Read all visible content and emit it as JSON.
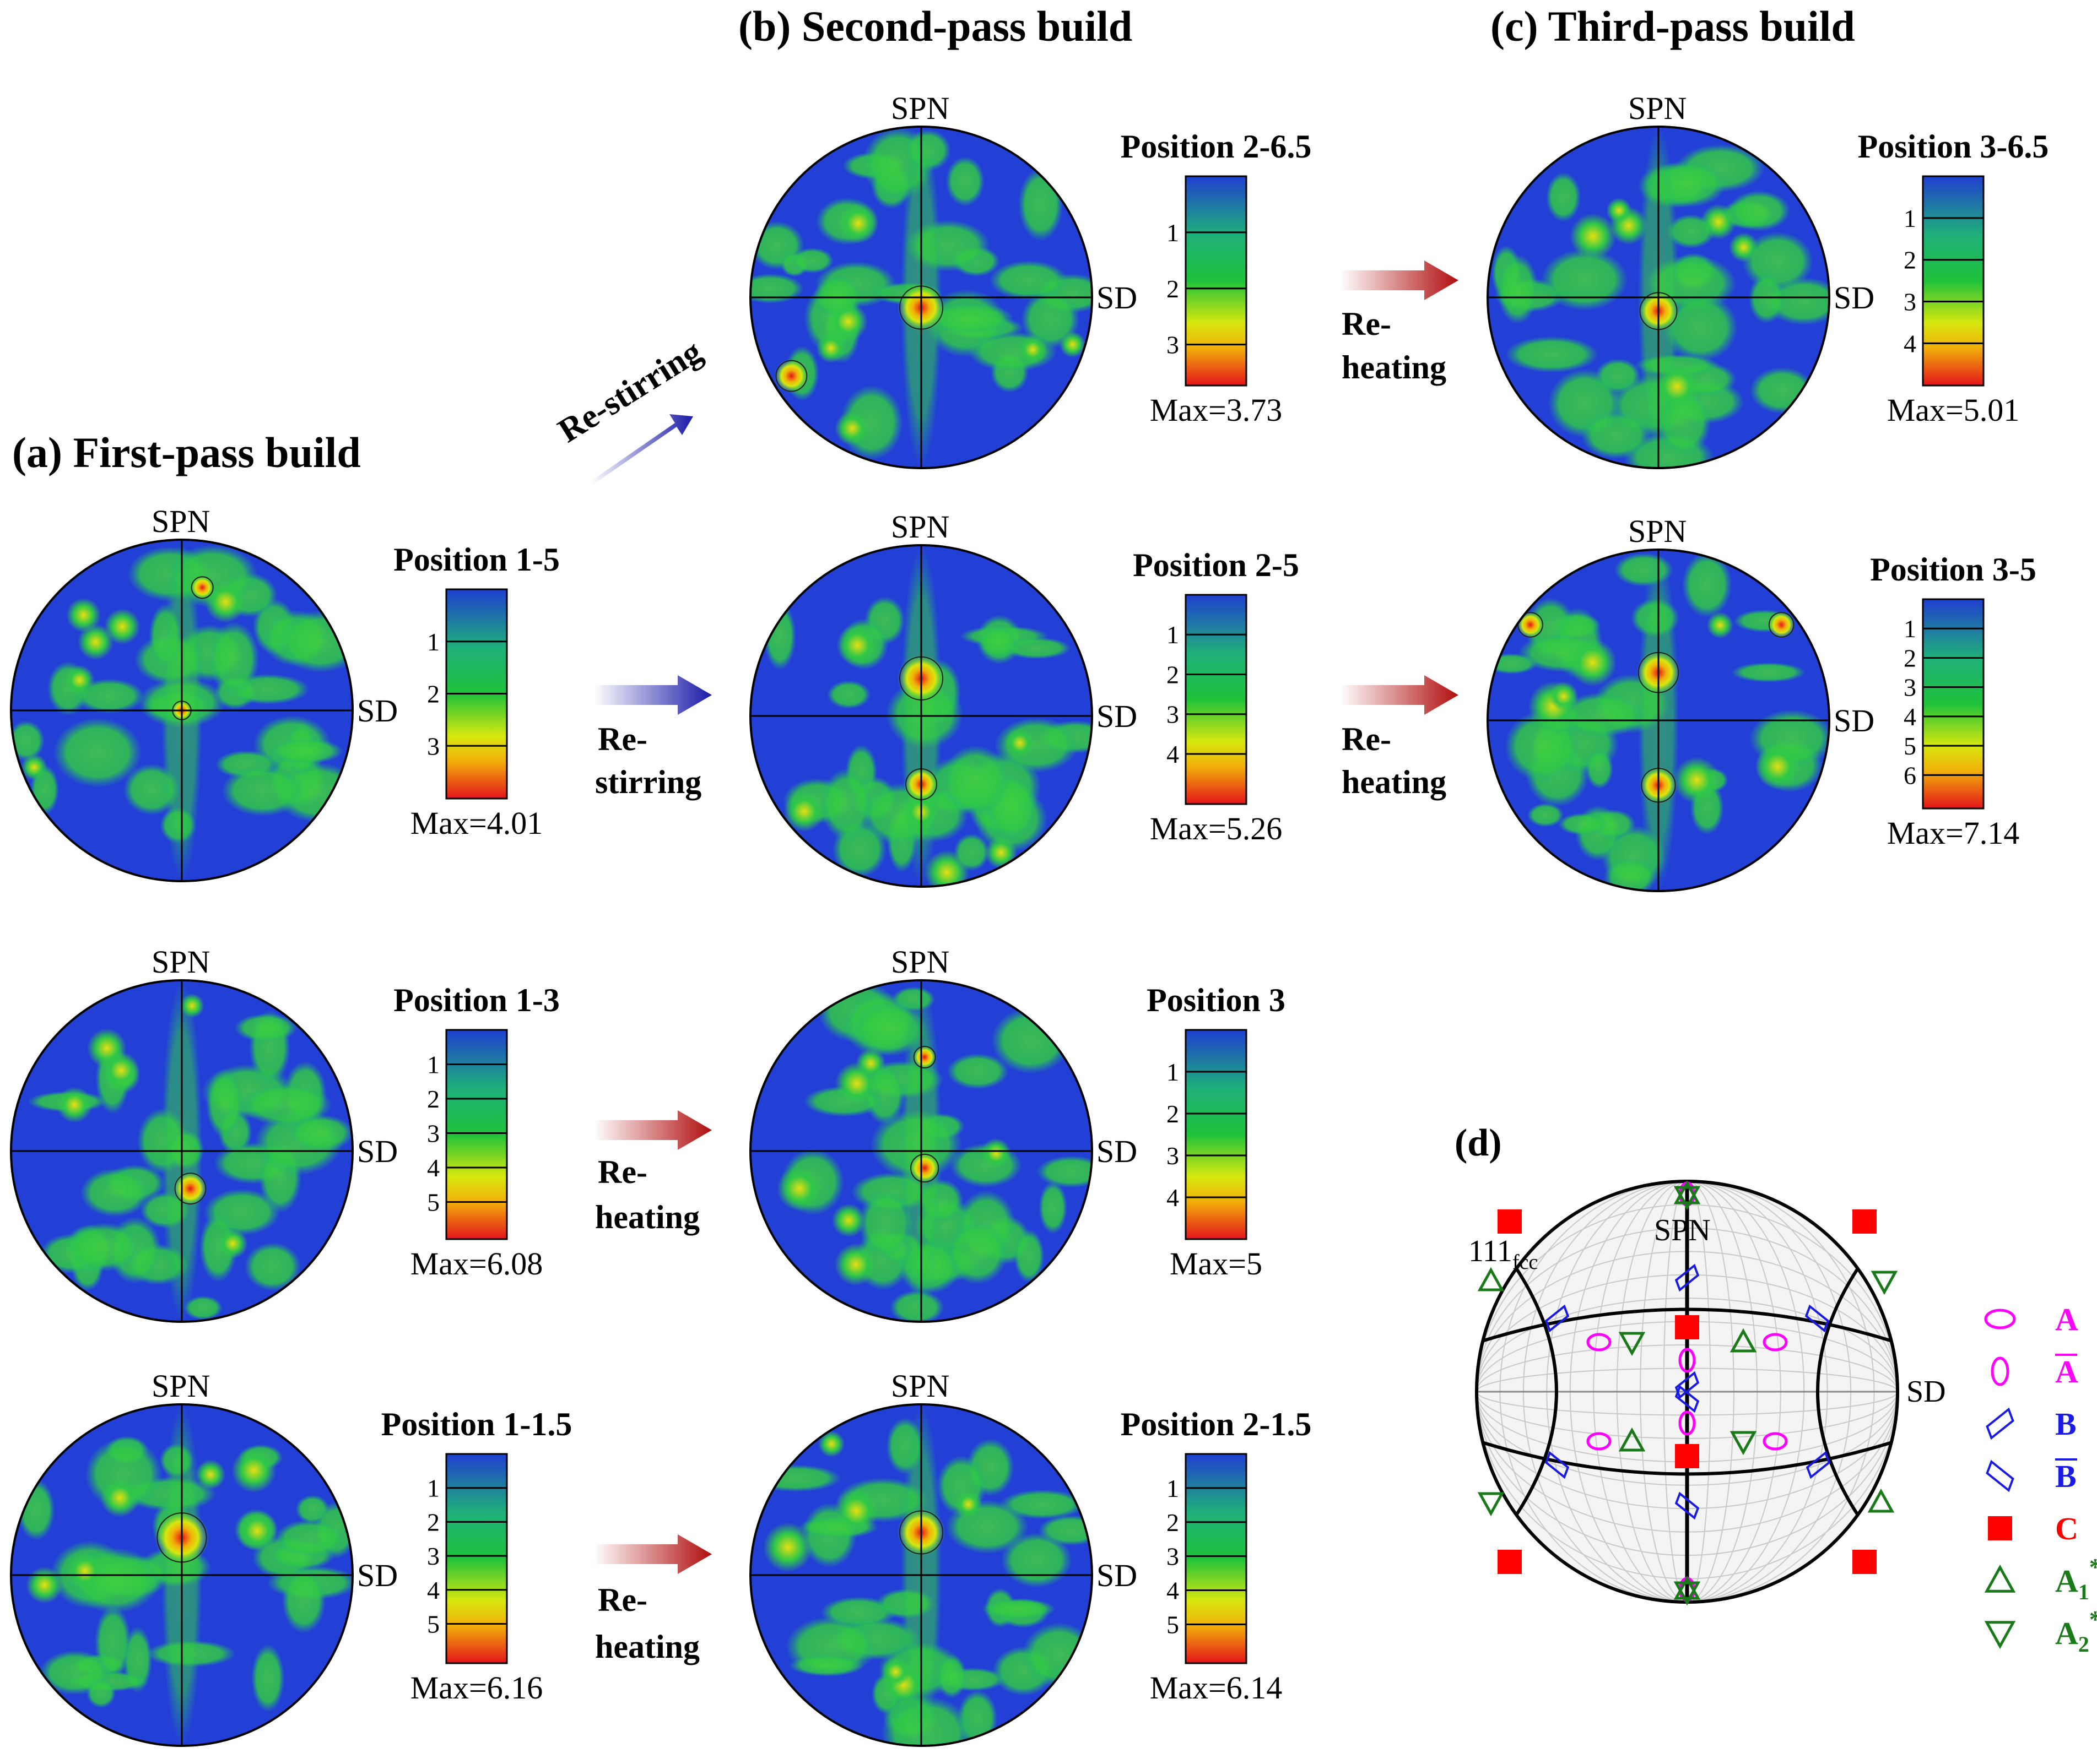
{
  "titles": {
    "a": "(a) First-pass build",
    "b": "(b) Second-pass build",
    "c": "(c) Third-pass build",
    "d": "(d)"
  },
  "axes": {
    "spn": "SPN",
    "sd": "SD"
  },
  "colors": {
    "stir_arrow": "#1a1aa8",
    "heat_arrow": "#b00e0e",
    "scale_top": "#1f3fd0",
    "scale_mid": "#1fc23a",
    "scale_yel": "#f2ee0a",
    "scale_bottom": "#e4141a",
    "contour_bg": "#2340d6",
    "contour_green": "#2fc847",
    "marker_A": "#ff00ff",
    "marker_B": "#1a1ae6",
    "marker_C": "#ff0000",
    "marker_A_star": "#1a7a1a"
  },
  "pole_figures": [
    {
      "id": "pf-1-5",
      "position": "Position 1-5",
      "max_label": "Max=4.01",
      "max": 4.01,
      "ticks": [
        "1",
        "2",
        "3"
      ]
    },
    {
      "id": "pf-1-3",
      "position": "Position 1-3",
      "max_label": "Max=6.08",
      "max": 6.08,
      "ticks": [
        "1",
        "2",
        "3",
        "4",
        "5"
      ]
    },
    {
      "id": "pf-1-1.5",
      "position": "Position 1-1.5",
      "max_label": "Max=6.16",
      "max": 6.16,
      "ticks": [
        "1",
        "2",
        "3",
        "4",
        "5"
      ]
    },
    {
      "id": "pf-2-6.5",
      "position": "Position 2-6.5",
      "max_label": "Max=3.73",
      "max": 3.73,
      "ticks": [
        "1",
        "2",
        "3"
      ]
    },
    {
      "id": "pf-2-5",
      "position": "Position 2-5",
      "max_label": "Max=5.26",
      "max": 5.26,
      "ticks": [
        "1",
        "2",
        "3",
        "4"
      ]
    },
    {
      "id": "pf-3",
      "position": "Position 3",
      "max_label": "Max=5",
      "max": 5,
      "ticks": [
        "1",
        "2",
        "3",
        "4"
      ]
    },
    {
      "id": "pf-2-1.5",
      "position": "Position 2-1.5",
      "max_label": "Max=6.14",
      "max": 6.14,
      "ticks": [
        "1",
        "2",
        "3",
        "4",
        "5"
      ]
    },
    {
      "id": "pf-3-6.5",
      "position": "Position 3-6.5",
      "max_label": "Max=5.01",
      "max": 5.01,
      "ticks": [
        "1",
        "2",
        "3",
        "4"
      ]
    },
    {
      "id": "pf-3-5",
      "position": "Position 3-5",
      "max_label": "Max=7.14",
      "max": 7.14,
      "ticks": [
        "1",
        "2",
        "3",
        "4",
        "5",
        "6"
      ]
    }
  ],
  "arrows": {
    "re_stirring_diag": "Re-stirring",
    "re_stirring": [
      "Re-",
      "stirring"
    ],
    "re_heating": [
      "Re-",
      "heating"
    ]
  },
  "panel_d": {
    "label": "111",
    "subscript": "fcc",
    "legend": [
      {
        "marker": "ellipse-h",
        "label": "A",
        "color_key": "marker_A"
      },
      {
        "marker": "ellipse-v",
        "label": "A",
        "overbar": true,
        "color_key": "marker_A"
      },
      {
        "marker": "rhombus-r",
        "label": "B",
        "color_key": "marker_B"
      },
      {
        "marker": "rhombus-l",
        "label": "B",
        "overbar": true,
        "color_key": "marker_B"
      },
      {
        "marker": "square",
        "label": "C",
        "color_key": "marker_C"
      },
      {
        "marker": "triangle-up",
        "label": "A",
        "sub": "1",
        "sup": "*",
        "color_key": "marker_A_star"
      },
      {
        "marker": "triangle-down",
        "label": "A",
        "sub": "2",
        "sup": "*",
        "color_key": "marker_A_star"
      }
    ]
  }
}
